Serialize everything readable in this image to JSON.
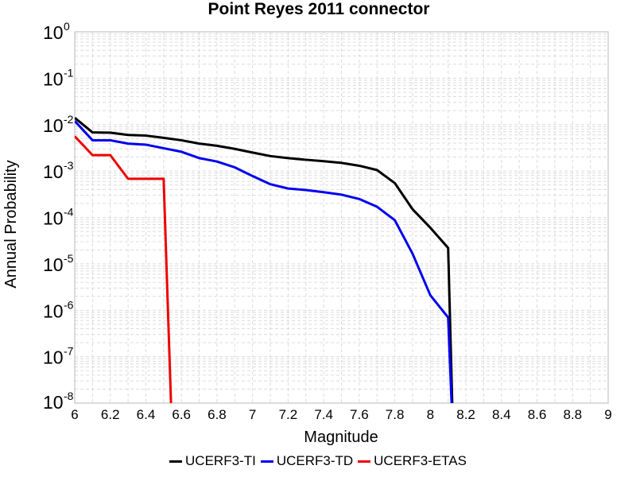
{
  "chart_data": {
    "type": "line",
    "title": "Point Reyes 2011 connector",
    "xlabel": "Magnitude",
    "ylabel": "Annual Probability",
    "xlim": [
      6,
      9
    ],
    "ylim_exponent": [
      -8,
      0
    ],
    "log_y": true,
    "grid": true,
    "legend_position": "bottom",
    "x_ticks": [
      "6",
      "6.2",
      "6.4",
      "6.6",
      "6.8",
      "7",
      "7.2",
      "7.4",
      "7.6",
      "7.8",
      "8",
      "8.2",
      "8.4",
      "8.6",
      "8.8",
      "9"
    ],
    "y_tick_base": "10",
    "y_tick_exponents": [
      "-8",
      "-7",
      "-6",
      "-5",
      "-4",
      "-3",
      "-2",
      "-1",
      "0"
    ],
    "series": [
      {
        "name": "UCERF3-TI",
        "color": "#000000",
        "x": [
          6.0,
          6.1,
          6.2,
          6.3,
          6.4,
          6.5,
          6.6,
          6.7,
          6.8,
          6.9,
          7.0,
          7.1,
          7.2,
          7.3,
          7.4,
          7.5,
          7.6,
          7.7,
          7.8,
          7.9,
          8.0,
          8.1,
          8.13
        ],
        "y": [
          0.014,
          0.0068,
          0.0067,
          0.006,
          0.0058,
          0.0052,
          0.0046,
          0.0039,
          0.0035,
          0.003,
          0.0025,
          0.0021,
          0.0019,
          0.00175,
          0.00163,
          0.0015,
          0.0013,
          0.00105,
          0.00055,
          0.00015,
          6e-05,
          2.2e-05,
          1e-09
        ]
      },
      {
        "name": "UCERF3-TD",
        "color": "#0000ee",
        "x": [
          6.0,
          6.1,
          6.2,
          6.3,
          6.4,
          6.5,
          6.6,
          6.7,
          6.8,
          6.9,
          7.0,
          7.1,
          7.2,
          7.3,
          7.4,
          7.5,
          7.6,
          7.7,
          7.8,
          7.9,
          8.0,
          8.1,
          8.13
        ],
        "y": [
          0.012,
          0.0046,
          0.0046,
          0.0039,
          0.0037,
          0.0031,
          0.0026,
          0.0019,
          0.0016,
          0.0012,
          0.00078,
          0.00052,
          0.00042,
          0.00039,
          0.00035,
          0.00031,
          0.00025,
          0.00017,
          8.75e-05,
          1.65e-05,
          2.1e-06,
          7e-07,
          1e-09
        ]
      },
      {
        "name": "UCERF3-ETAS",
        "color": "#ee0000",
        "x": [
          6.0,
          6.1,
          6.2,
          6.3,
          6.4,
          6.5,
          6.55
        ],
        "y": [
          0.0056,
          0.0022,
          0.0022,
          0.00068,
          0.00068,
          0.00068,
          1e-09
        ]
      }
    ]
  }
}
